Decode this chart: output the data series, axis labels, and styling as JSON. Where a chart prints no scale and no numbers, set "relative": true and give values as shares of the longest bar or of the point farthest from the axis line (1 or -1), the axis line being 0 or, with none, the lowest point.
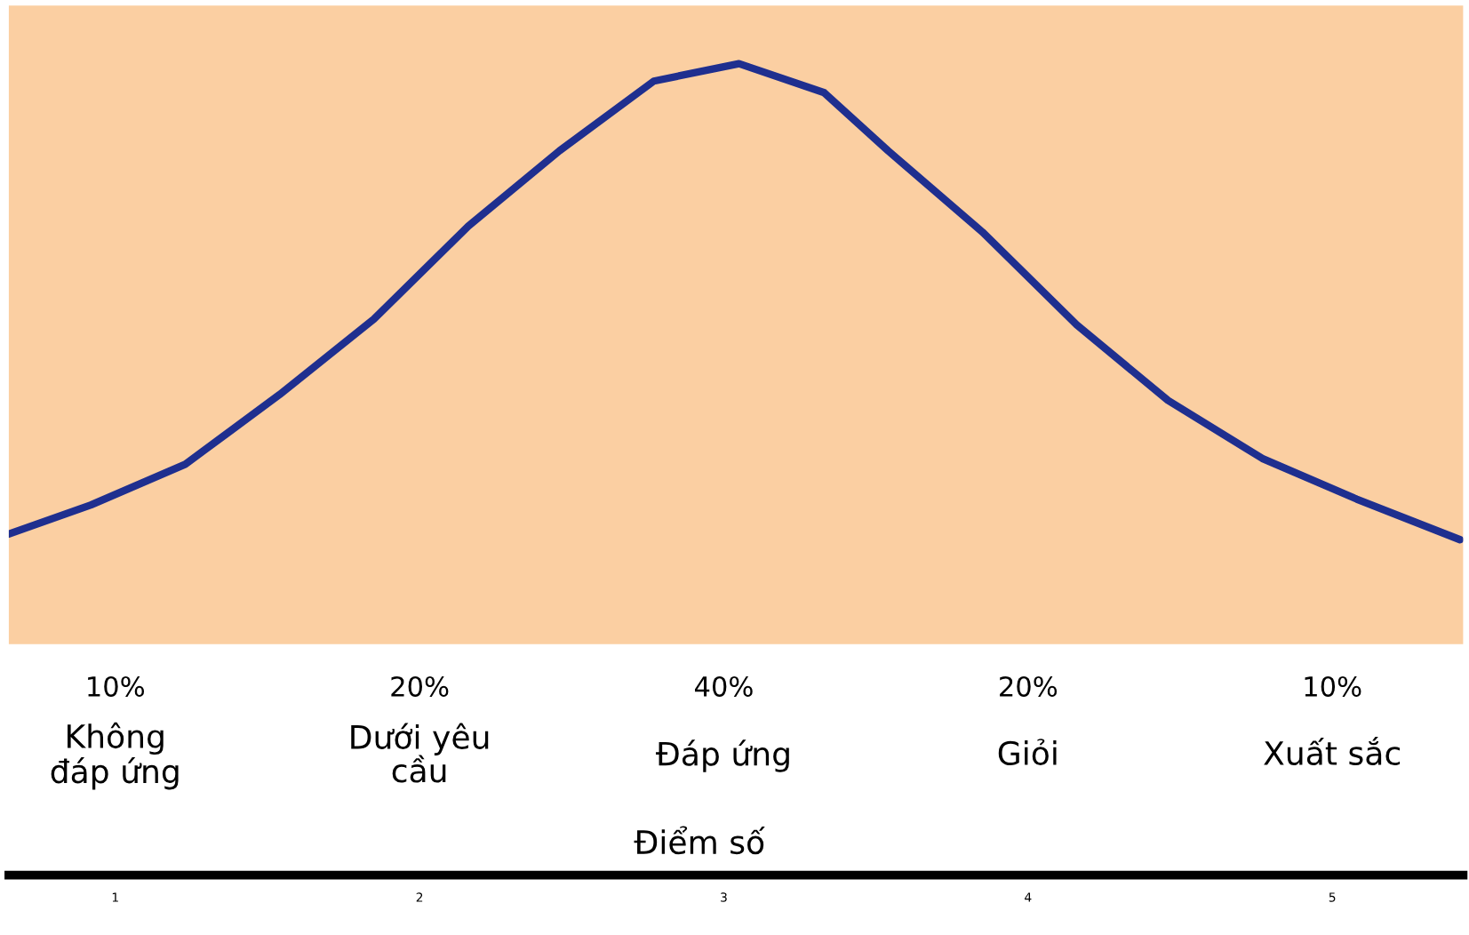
{
  "chart_data": {
    "type": "line",
    "relative": true,
    "xlabel": "Điểm số",
    "x": [
      0.65,
      0.92,
      1.23,
      1.54,
      1.85,
      2.16,
      2.46,
      2.77,
      3.05,
      3.33,
      3.54,
      3.85,
      4.16,
      4.46,
      4.77,
      5.08,
      5.42
    ],
    "series": [
      {
        "color": "#1f2f8f",
        "values": [
          0.19,
          0.24,
          0.31,
          0.43,
          0.56,
          0.72,
          0.85,
          0.97,
          1.0,
          0.95,
          0.85,
          0.71,
          0.55,
          0.42,
          0.32,
          0.25,
          0.18
        ]
      }
    ],
    "xlim": [
      0.65,
      5.43
    ],
    "xticks": [
      1,
      2,
      3,
      4,
      5
    ],
    "annotations": [
      "10%",
      "20%",
      "40%",
      "20%",
      "10%",
      "Không\nđáp ứng",
      "Dưới yêu\ncầu",
      "Đáp ứng",
      "Giỏi",
      "Xuất sắc"
    ],
    "grid": false,
    "legend": false,
    "marker": "none",
    "line_style": "solid"
  }
}
